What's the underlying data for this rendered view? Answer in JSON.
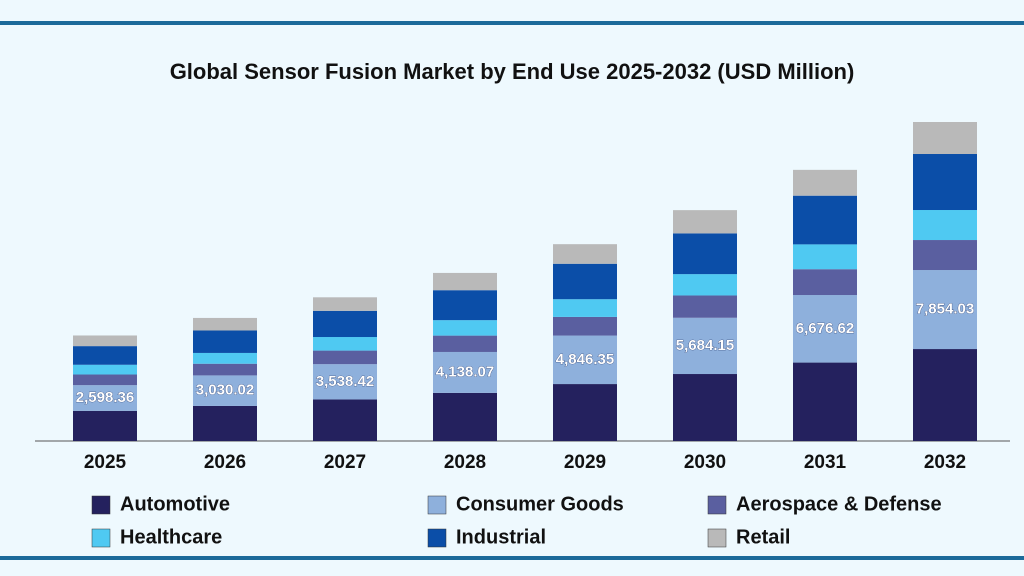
{
  "chart_data": {
    "type": "stacked-bar",
    "title": "Global Sensor Fusion Market by End Use 2025-2032 (USD Million)",
    "categories": [
      "2025",
      "2026",
      "2027",
      "2028",
      "2029",
      "2030",
      "2031",
      "2032"
    ],
    "series": [
      {
        "name": "Automotive",
        "color": "#24215e",
        "values": [
          742,
          863,
          1024,
          1185,
          1402,
          1649,
          1931,
          2264
        ]
      },
      {
        "name": "Consumer Goods",
        "color": "#8eb0dc",
        "values": [
          633,
          752,
          868,
          1007,
          1194,
          1385,
          1663,
          1945
        ]
      },
      {
        "name": "Aerospace & Defense",
        "color": "#5a5fa0",
        "values": [
          262,
          288,
          334,
          403,
          459,
          549,
          636,
          739
        ]
      },
      {
        "name": "Healthcare",
        "color": "#4fc9f2",
        "values": [
          240,
          265,
          334,
          380,
          436,
          525,
          611,
          739
        ]
      },
      {
        "name": "Industrial",
        "color": "#0b4ea8",
        "values": [
          459,
          553,
          645,
          738,
          873,
          1003,
          1199,
          1379
        ]
      },
      {
        "name": "Retail",
        "color": "#b9b9b9",
        "values": [
          262,
          309,
          333,
          425,
          482,
          573,
          636,
          788
        ]
      }
    ],
    "totals": [
      2598.36,
      3030.02,
      3538.42,
      4138.07,
      4846.35,
      5684.15,
      6676.62,
      7854.03
    ],
    "total_labels": [
      "2,598.36",
      "3,030.02",
      "3,538.42",
      "4,138.07",
      "4,846.35",
      "5,684.15",
      "6,676.62",
      "7,854.03"
    ]
  }
}
